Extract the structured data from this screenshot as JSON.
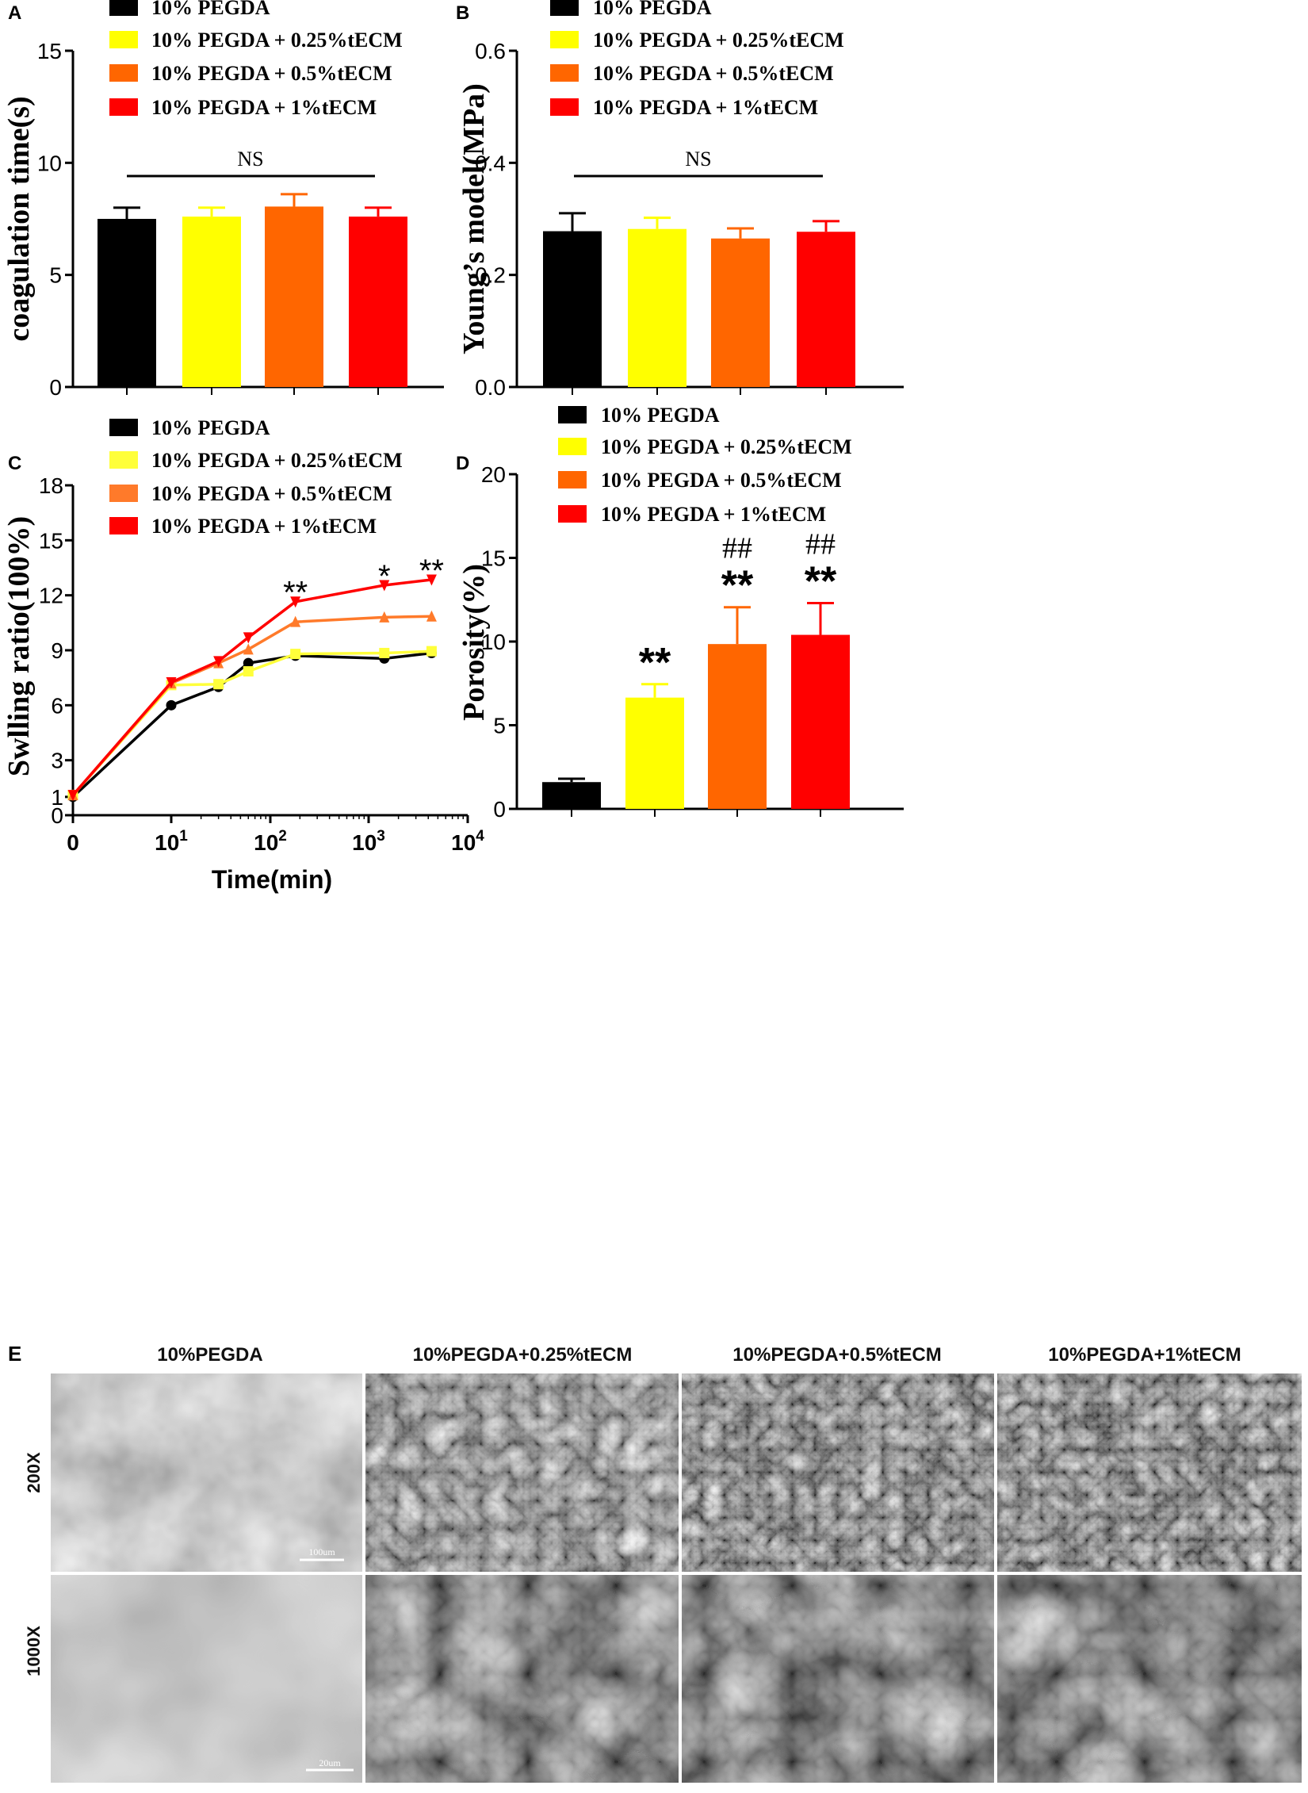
{
  "colors": {
    "black": "#000000",
    "yellow": "#ffff00",
    "orange": "#ff6600",
    "red": "#ff0000",
    "line_orange": "#ff7a2a",
    "line_yellow": "#ffff3a"
  },
  "chart_data": [
    {
      "id": "A",
      "panel_label": "A",
      "type": "bar",
      "ylabel": "coagulation time(s)",
      "ylim": [
        0,
        15
      ],
      "yticks": [
        0,
        5,
        10,
        15
      ],
      "ytick_labels": [
        "0",
        "5",
        "10",
        "15"
      ],
      "legend": [
        "10% PEGDA",
        "10% PEGDA + 0.25%tECM",
        "10% PEGDA +  0.5%tECM",
        "10% PEGDA +   1%tECM"
      ],
      "colors": [
        "#000000",
        "#ffff00",
        "#ff6600",
        "#ff0000"
      ],
      "values": [
        7.5,
        7.6,
        8.05,
        7.6
      ],
      "errors": [
        0.5,
        0.4,
        0.55,
        0.4
      ],
      "annotation": "NS",
      "legend_position": "top"
    },
    {
      "id": "B",
      "panel_label": "B",
      "type": "bar",
      "ylabel": "Young’s model(MPa)",
      "ylim": [
        0,
        0.6
      ],
      "yticks": [
        0,
        0.2,
        0.4,
        0.6
      ],
      "ytick_labels": [
        "0.0",
        "0.2",
        "0.4",
        "0.6"
      ],
      "legend": [
        "10% PEGDA",
        "10% PEGDA + 0.25%tECM",
        "10% PEGDA +  0.5%tECM",
        "10% PEGDA +   1%tECM"
      ],
      "colors": [
        "#000000",
        "#ffff00",
        "#ff6600",
        "#ff0000"
      ],
      "values": [
        0.278,
        0.282,
        0.265,
        0.277
      ],
      "errors": [
        0.032,
        0.02,
        0.018,
        0.019
      ],
      "annotation": "NS",
      "legend_position": "top"
    },
    {
      "id": "C",
      "panel_label": "C",
      "type": "line",
      "xscale": "log",
      "xlabel": "Time(min)",
      "ylabel": "Swlling ratio(100%)",
      "ylim": [
        0,
        18
      ],
      "yticks": [
        0,
        1,
        3,
        6,
        9,
        12,
        15,
        18
      ],
      "ytick_labels": [
        "0",
        "1",
        "3",
        "6",
        "9",
        "12",
        "15",
        "18"
      ],
      "xticks": [
        {
          "base": "0",
          "exp": ""
        },
        {
          "base": "10",
          "exp": "1"
        },
        {
          "base": "10",
          "exp": "2"
        },
        {
          "base": "10",
          "exp": "3"
        },
        {
          "base": "10",
          "exp": "4"
        }
      ],
      "legend": [
        "10% PEGDA",
        "10% PEGDA + 0.25%tECM",
        "10% PEGDA +  0.5%tECM",
        "10% PEGDA +   1%tECM"
      ],
      "series": [
        {
          "name": "10% PEGDA",
          "color": "#000000",
          "marker": "circle",
          "x": [
            1,
            10,
            30,
            60,
            180,
            1440,
            4320
          ],
          "y": [
            1.0,
            6.0,
            7.0,
            8.3,
            8.7,
            8.55,
            8.85
          ]
        },
        {
          "name": "10% PEGDA + 0.25%tECM",
          "color": "#ffff3a",
          "marker": "square",
          "x": [
            1,
            10,
            30,
            60,
            180,
            1440,
            4320
          ],
          "y": [
            1.1,
            7.1,
            7.15,
            7.85,
            8.8,
            8.85,
            8.95
          ]
        },
        {
          "name": "10% PEGDA +  0.5%tECM",
          "color": "#ff7a2a",
          "marker": "triangle-up",
          "x": [
            1,
            10,
            30,
            60,
            180,
            1440,
            4320
          ],
          "y": [
            1.1,
            7.2,
            8.3,
            9.05,
            10.55,
            10.8,
            10.85
          ]
        },
        {
          "name": "10% PEGDA +   1%tECM",
          "color": "#ff0000",
          "marker": "triangle-down",
          "x": [
            1,
            10,
            30,
            60,
            180,
            1440,
            4320
          ],
          "y": [
            1.1,
            7.25,
            8.4,
            9.7,
            11.65,
            12.55,
            12.85
          ]
        }
      ],
      "significance": [
        {
          "x": 180,
          "y": 12.35,
          "text": "**"
        },
        {
          "x": 1440,
          "y": 13.25,
          "text": "*"
        },
        {
          "x": 4320,
          "y": 13.55,
          "text": "**"
        }
      ],
      "legend_position": "top"
    },
    {
      "id": "D",
      "panel_label": "D",
      "type": "bar",
      "ylabel": "Porosity(%)",
      "ylim": [
        0,
        20
      ],
      "yticks": [
        0,
        5,
        10,
        15,
        20
      ],
      "ytick_labels": [
        "0",
        "5",
        "10",
        "15",
        "20"
      ],
      "legend": [
        "10% PEGDA",
        "10% PEGDA + 0.25%tECM",
        "10% PEGDA +  0.5%tECM",
        "10% PEGDA +   1%tECM"
      ],
      "colors": [
        "#000000",
        "#ffff00",
        "#ff6600",
        "#ff0000"
      ],
      "values": [
        1.6,
        6.65,
        9.85,
        10.4
      ],
      "errors": [
        0.2,
        0.8,
        2.2,
        1.9
      ],
      "significance": [
        "",
        "**",
        "**",
        "**"
      ],
      "hash_marks": [
        "",
        "",
        "##",
        "##"
      ],
      "legend_position": "top"
    }
  ],
  "panel_e": {
    "panel_label": "E",
    "column_titles": [
      "10%PEGDA",
      "10%PEGDA+0.25%tECM",
      "10%PEGDA+0.5%tECM",
      "10%PEGDA+1%tECM"
    ],
    "row_labels": [
      "200X",
      "1000X"
    ],
    "scale_bars": [
      "100um",
      "20um"
    ]
  }
}
